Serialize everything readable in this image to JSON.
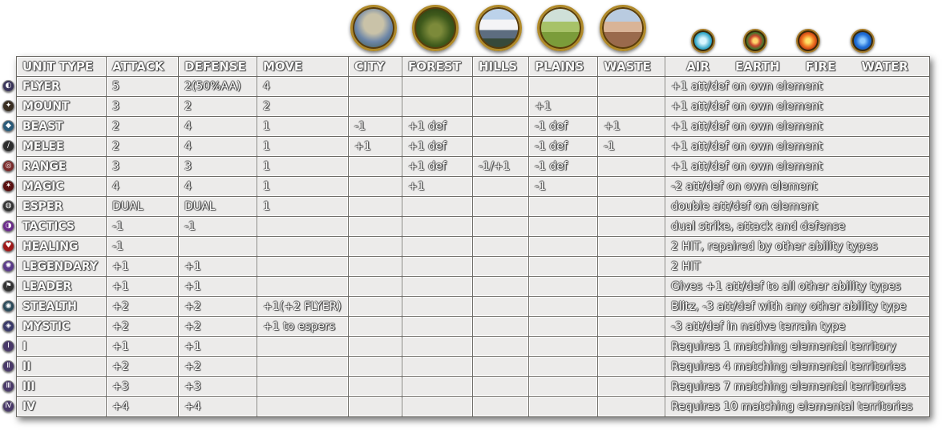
{
  "headers": {
    "unit_type": "UNIT TYPE",
    "attack": "ATTACK",
    "defense": "DEFENSE",
    "move": "MOVE",
    "terrain": [
      "CITY",
      "FOREST",
      "HILLS",
      "PLAINS",
      "WASTE"
    ],
    "elements": [
      "AIR",
      "EARTH",
      "FIRE",
      "WATER"
    ]
  },
  "terrain_icons": [
    "city-icon",
    "forest-icon",
    "hills-icon",
    "plains-icon",
    "waste-icon"
  ],
  "element_icons": [
    "air-icon",
    "earth-icon",
    "fire-icon",
    "water-icon"
  ],
  "rows": [
    {
      "icon": "flyer-icon",
      "unit": "FLYER",
      "attack": "5",
      "defense": "2(50%AA)",
      "move": "4",
      "city": "",
      "forest": "",
      "hills": "",
      "plains": "",
      "waste": "",
      "note": "+1 att/def on own element"
    },
    {
      "icon": "mount-icon",
      "unit": "MOUNT",
      "attack": "3",
      "defense": "2",
      "move": "2",
      "city": "",
      "forest": "",
      "hills": "",
      "plains": "+1",
      "waste": "",
      "note": "+1 att/def on own element"
    },
    {
      "icon": "beast-icon",
      "unit": "BEAST",
      "attack": "2",
      "defense": "4",
      "move": "1",
      "city": "-1",
      "forest": "+1 def",
      "hills": "",
      "plains": "-1 def",
      "waste": "+1",
      "note": "+1 att/def on own element"
    },
    {
      "icon": "melee-icon",
      "unit": "MELEE",
      "attack": "2",
      "defense": "4",
      "move": "1",
      "city": "+1",
      "forest": "+1 def",
      "hills": "",
      "plains": "-1 def",
      "waste": "-1",
      "note": "+1 att/def on own element"
    },
    {
      "icon": "range-icon",
      "unit": "RANGE",
      "attack": "3",
      "defense": "3",
      "move": "1",
      "city": "",
      "forest": "+1 def",
      "hills": "-1/+1",
      "plains": "-1 def",
      "waste": "",
      "note": "+1 att/def on own element"
    },
    {
      "icon": "magic-icon",
      "unit": "MAGIC",
      "attack": "4",
      "defense": "4",
      "move": "1",
      "city": "",
      "forest": "+1",
      "hills": "",
      "plains": "-1",
      "waste": "",
      "note": "-2 att/def on own element"
    },
    {
      "icon": "esper-icon",
      "unit": "ESPER",
      "attack": "DUAL",
      "defense": "DUAL",
      "move": "1",
      "city": "",
      "forest": "",
      "hills": "",
      "plains": "",
      "waste": "",
      "note": "double att/def on element"
    },
    {
      "icon": "tactics-icon",
      "unit": "TACTICS",
      "attack": "-1",
      "defense": "-1",
      "move": "",
      "city": "",
      "forest": "",
      "hills": "",
      "plains": "",
      "waste": "",
      "note": "dual strike, attack and defense"
    },
    {
      "icon": "healing-icon",
      "unit": "HEALING",
      "attack": " -1",
      "defense": "",
      "move": "",
      "city": "",
      "forest": "",
      "hills": "",
      "plains": "",
      "waste": "",
      "note": "2 HIT, repaired by other ability types"
    },
    {
      "icon": "legendary-icon",
      "unit": "LEGENDARY",
      "attack": "+1",
      "defense": "+1",
      "move": "",
      "city": "",
      "forest": "",
      "hills": "",
      "plains": "",
      "waste": "",
      "note": "2 HIT"
    },
    {
      "icon": "leader-icon",
      "unit": "LEADER",
      "attack": "+1",
      "defense": "+1",
      "move": "",
      "city": "",
      "forest": "",
      "hills": "",
      "plains": "",
      "waste": "",
      "note": "Gives +1 att/def to all other ability types"
    },
    {
      "icon": "stealth-icon",
      "unit": "STEALTH",
      "attack": "+2",
      "defense": "+2",
      "move": "+1(+2 FLYER)",
      "city": "",
      "forest": "",
      "hills": "",
      "plains": "",
      "waste": "",
      "note": "Blitz, -3 att/def with any other ability type"
    },
    {
      "icon": "mystic-icon",
      "unit": "MYSTIC",
      "attack": "+2",
      "defense": "+2",
      "move": "+1 to espers",
      "city": "",
      "forest": "",
      "hills": "",
      "plains": "",
      "waste": "",
      "note": "-3 att/def in native terrain type"
    },
    {
      "icon": "rank-1-icon",
      "unit": "I",
      "attack": "+1",
      "defense": "+1",
      "move": "",
      "city": "",
      "forest": "",
      "hills": "",
      "plains": "",
      "waste": "",
      "note": "Requires 1 matching elemental territory"
    },
    {
      "icon": "rank-2-icon",
      "unit": "II",
      "attack": "+2",
      "defense": "+2",
      "move": "",
      "city": "",
      "forest": "",
      "hills": "",
      "plains": "",
      "waste": "",
      "note": "Requires 4 matching elemental territories"
    },
    {
      "icon": "rank-3-icon",
      "unit": "III",
      "attack": "+3",
      "defense": "+3",
      "move": "",
      "city": "",
      "forest": "",
      "hills": "",
      "plains": "",
      "waste": "",
      "note": "Requires 7 matching elemental territories"
    },
    {
      "icon": "rank-4-icon",
      "unit": "IV",
      "attack": "+4",
      "defense": "+4",
      "move": "",
      "city": "",
      "forest": "",
      "hills": "",
      "plains": "",
      "waste": "",
      "note": "Requires 10 matching elemental territories"
    }
  ]
}
